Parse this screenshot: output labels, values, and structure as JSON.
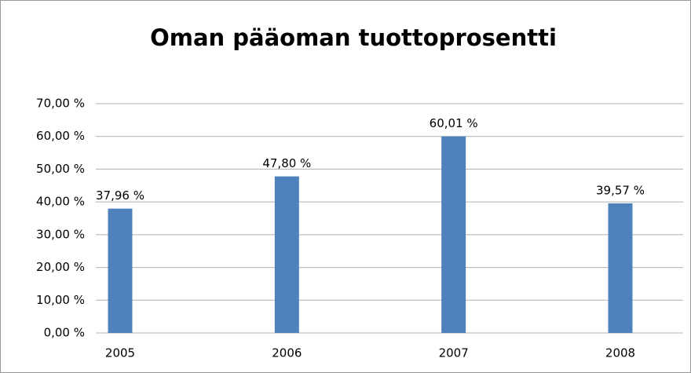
{
  "chart_data": {
    "type": "bar",
    "title": "Oman pääoman tuottoprosentti",
    "categories": [
      "2005",
      "2006",
      "2007",
      "2008"
    ],
    "values": [
      37.96,
      47.8,
      60.01,
      39.57
    ],
    "value_labels": [
      "37,96 %",
      "47,80 %",
      "60,01 %",
      "39,57 %"
    ],
    "color": "#4f81bd",
    "ylim": [
      0,
      70
    ],
    "yticks": [
      {
        "value": 0,
        "label": "0,00 %"
      },
      {
        "value": 10,
        "label": "10,00 %"
      },
      {
        "value": 20,
        "label": "20,00 %"
      },
      {
        "value": 30,
        "label": "30,00 %"
      },
      {
        "value": 40,
        "label": "40,00 %"
      },
      {
        "value": 50,
        "label": "50,00 %"
      },
      {
        "value": 60,
        "label": "60,00 %"
      },
      {
        "value": 70,
        "label": "70,00 %"
      }
    ],
    "grid": true
  }
}
